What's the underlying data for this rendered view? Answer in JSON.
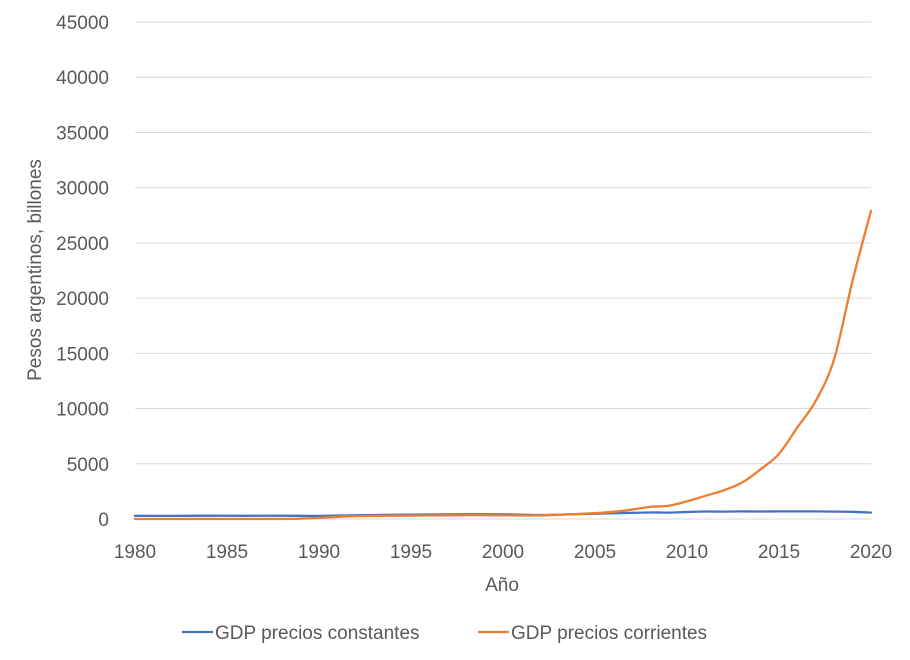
{
  "chart_data": {
    "type": "line",
    "xlabel": "Año",
    "ylabel": "Pesos argentinos, billones",
    "xlim": [
      1980,
      2020
    ],
    "ylim": [
      0,
      45000
    ],
    "xticks": [
      1980,
      1985,
      1990,
      1995,
      2000,
      2005,
      2010,
      2015,
      2020
    ],
    "yticks": [
      0,
      5000,
      10000,
      15000,
      20000,
      25000,
      30000,
      35000,
      40000,
      45000
    ],
    "grid": "horizontal",
    "legend_position": "bottom",
    "series": [
      {
        "name": "GDP precios constantes",
        "color": "#4472C4",
        "x": [
          1980,
          1982,
          1984,
          1986,
          1988,
          1990,
          1992,
          1994,
          1996,
          1998,
          2000,
          2002,
          2004,
          2006,
          2008,
          2009,
          2010,
          2011,
          2012,
          2013,
          2014,
          2015,
          2016,
          2017,
          2018,
          2019,
          2020
        ],
        "y": [
          290,
          280,
          300,
          290,
          300,
          280,
          340,
          380,
          400,
          430,
          420,
          360,
          440,
          520,
          590,
          580,
          640,
          680,
          670,
          690,
          680,
          690,
          690,
          690,
          670,
          650,
          580
        ]
      },
      {
        "name": "GDP precios corrientes",
        "color": "#ED7D31",
        "x": [
          1980,
          1985,
          1988,
          1989,
          1990,
          1991,
          1992,
          1994,
          1996,
          1998,
          2000,
          2002,
          2003,
          2004,
          2005,
          2006,
          2007,
          2008,
          2009,
          2010,
          2011,
          2012,
          2013,
          2014,
          2015,
          2016,
          2017,
          2018,
          2019,
          2020
        ],
        "y": [
          0,
          0,
          5,
          30,
          100,
          200,
          260,
          300,
          320,
          340,
          330,
          320,
          380,
          450,
          530,
          650,
          850,
          1100,
          1200,
          1600,
          2100,
          2600,
          3300,
          4500,
          5900,
          8300,
          10700,
          14500,
          21600,
          27900
        ]
      }
    ]
  }
}
